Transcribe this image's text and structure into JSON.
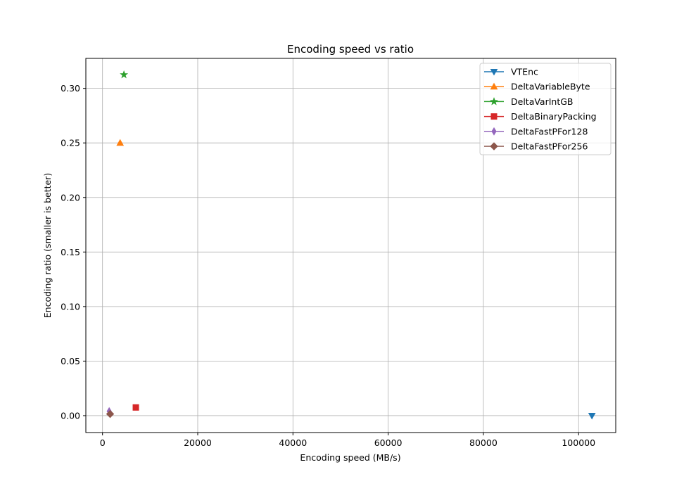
{
  "chart_data": {
    "type": "scatter",
    "title": "Encoding speed vs ratio",
    "xlabel": "Encoding speed (MB/s)",
    "ylabel": "Encoding ratio (smaller is better)",
    "xlim": [
      -3500,
      107800
    ],
    "ylim": [
      -0.0155,
      0.3275
    ],
    "x_ticks": [
      0,
      20000,
      40000,
      60000,
      80000,
      100000
    ],
    "y_ticks": [
      0.0,
      0.05,
      0.1,
      0.15,
      0.2,
      0.25,
      0.3
    ],
    "x_tick_labels": [
      "0",
      "20000",
      "40000",
      "60000",
      "80000",
      "100000"
    ],
    "y_tick_labels": [
      "0.00",
      "0.05",
      "0.10",
      "0.15",
      "0.20",
      "0.25",
      "0.30"
    ],
    "grid": true,
    "legend_position": "top-right",
    "series": [
      {
        "name": "VTEnc",
        "marker": "triangle-down",
        "color": "#1f77b4",
        "points": [
          [
            102800,
            0.0
          ]
        ]
      },
      {
        "name": "DeltaVariableByte",
        "marker": "triangle-up",
        "color": "#ff7f0e",
        "points": [
          [
            3700,
            0.25
          ]
        ]
      },
      {
        "name": "DeltaVarIntGB",
        "marker": "star",
        "color": "#2ca02c",
        "points": [
          [
            4500,
            0.3125
          ]
        ]
      },
      {
        "name": "DeltaBinaryPacking",
        "marker": "square",
        "color": "#d62728",
        "points": [
          [
            7000,
            0.0075
          ]
        ]
      },
      {
        "name": "DeltaFastPFor128",
        "marker": "thin-diamond",
        "color": "#9467bd",
        "points": [
          [
            1400,
            0.004
          ]
        ]
      },
      {
        "name": "DeltaFastPFor256",
        "marker": "diamond",
        "color": "#8c564b",
        "points": [
          [
            1600,
            0.0015
          ]
        ]
      }
    ]
  }
}
